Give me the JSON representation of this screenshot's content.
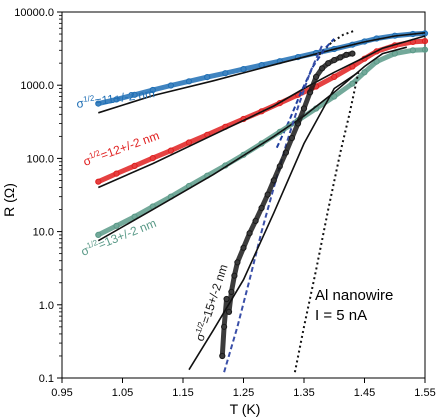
{
  "chart_data": {
    "type": "scatter",
    "title": "",
    "xlabel": "T (K)",
    "ylabel": "R (Ω)",
    "xlim": [
      0.95,
      1.55
    ],
    "ylim": [
      0.1,
      10000
    ],
    "yscale": "log",
    "grid": false,
    "x_ticks": [
      "0.95",
      "1.05",
      "1.15",
      "1.25",
      "1.35",
      "1.45",
      "1.55"
    ],
    "y_ticks": [
      "0.1",
      "1.0",
      "10.0",
      "100.0",
      "1000.0",
      "10000.0"
    ],
    "annotation": {
      "lines": [
        "Al nanowire",
        "I = 5 nA"
      ]
    },
    "series": [
      {
        "label": {
          "base": "σ",
          "sup": "1/2",
          "rest": "=11+/-2 nm"
        },
        "color": "#1f6fb5",
        "data": [
          [
            1.01,
            560
          ],
          [
            1.04,
            640
          ],
          [
            1.07,
            740
          ],
          [
            1.1,
            860
          ],
          [
            1.13,
            990
          ],
          [
            1.16,
            1130
          ],
          [
            1.19,
            1290
          ],
          [
            1.22,
            1460
          ],
          [
            1.25,
            1660
          ],
          [
            1.28,
            1880
          ],
          [
            1.31,
            2130
          ],
          [
            1.34,
            2420
          ],
          [
            1.37,
            2750
          ],
          [
            1.4,
            3120
          ],
          [
            1.43,
            3570
          ],
          [
            1.45,
            3950
          ],
          [
            1.47,
            4350
          ],
          [
            1.5,
            4750
          ],
          [
            1.53,
            5000
          ],
          [
            1.55,
            5100
          ]
        ],
        "fits": [
          {
            "style": "solid",
            "color": "#111111",
            "data": [
              [
                1.01,
                420
              ],
              [
                1.1,
                720
              ],
              [
                1.2,
                1150
              ],
              [
                1.3,
                1900
              ],
              [
                1.4,
                3100
              ],
              [
                1.45,
                3900
              ],
              [
                1.5,
                4700
              ],
              [
                1.55,
                5200
              ]
            ]
          },
          {
            "style": "dotted",
            "color": "#111111",
            "data": [
              [
                1.375,
                2600
              ],
              [
                1.395,
                3800
              ],
              [
                1.415,
                4900
              ],
              [
                1.435,
                5600
              ]
            ]
          }
        ]
      },
      {
        "label": {
          "base": "σ",
          "sup": "1/2",
          "rest": "=12+/-2 nm"
        },
        "color": "#e02020",
        "data": [
          [
            1.01,
            48
          ],
          [
            1.04,
            62
          ],
          [
            1.07,
            79
          ],
          [
            1.1,
            101
          ],
          [
            1.13,
            128
          ],
          [
            1.16,
            165
          ],
          [
            1.19,
            210
          ],
          [
            1.22,
            270
          ],
          [
            1.25,
            345
          ],
          [
            1.28,
            440
          ],
          [
            1.31,
            570
          ],
          [
            1.34,
            740
          ],
          [
            1.37,
            960
          ],
          [
            1.4,
            1300
          ],
          [
            1.43,
            1800
          ],
          [
            1.45,
            2300
          ],
          [
            1.47,
            2900
          ],
          [
            1.5,
            3500
          ],
          [
            1.53,
            3900
          ],
          [
            1.55,
            4000
          ]
        ],
        "fits": [
          {
            "style": "solid",
            "color": "#111111",
            "data": [
              [
                1.01,
                40
              ],
              [
                1.1,
                85
              ],
              [
                1.2,
                210
              ],
              [
                1.3,
                520
              ],
              [
                1.35,
                900
              ],
              [
                1.4,
                1500
              ],
              [
                1.45,
                2400
              ],
              [
                1.48,
                3200
              ],
              [
                1.55,
                4700
              ]
            ]
          },
          {
            "style": "dashed",
            "color": "#1f3fa0",
            "data": [
              [
                1.305,
                140
              ],
              [
                1.325,
                320
              ],
              [
                1.345,
                800
              ],
              [
                1.365,
                1800
              ],
              [
                1.385,
                3200
              ],
              [
                1.4,
                4300
              ]
            ]
          }
        ]
      },
      {
        "label": {
          "base": "σ",
          "sup": "1/2",
          "rest": "=13+/-2 nm"
        },
        "color": "#5a9a88",
        "data": [
          [
            1.01,
            9
          ],
          [
            1.04,
            12
          ],
          [
            1.07,
            16
          ],
          [
            1.1,
            22
          ],
          [
            1.13,
            30
          ],
          [
            1.16,
            42
          ],
          [
            1.19,
            58
          ],
          [
            1.22,
            80
          ],
          [
            1.25,
            112
          ],
          [
            1.28,
            160
          ],
          [
            1.31,
            230
          ],
          [
            1.34,
            330
          ],
          [
            1.37,
            480
          ],
          [
            1.4,
            700
          ],
          [
            1.43,
            1050
          ],
          [
            1.45,
            1500
          ],
          [
            1.47,
            2100
          ],
          [
            1.5,
            2700
          ],
          [
            1.53,
            3000
          ],
          [
            1.55,
            3050
          ]
        ],
        "fits": [
          {
            "style": "solid",
            "color": "#111111",
            "data": [
              [
                1.01,
                7.5
              ],
              [
                1.1,
                20
              ],
              [
                1.2,
                60
              ],
              [
                1.3,
                200
              ],
              [
                1.35,
                380
              ],
              [
                1.4,
                800
              ],
              [
                1.45,
                1800
              ],
              [
                1.48,
                2700
              ],
              [
                1.52,
                3300
              ]
            ]
          },
          {
            "style": "dashed",
            "color": "#3a4fa8",
            "data": [
              [
                1.218,
                0.12
              ],
              [
                1.24,
                0.5
              ],
              [
                1.26,
                2.2
              ],
              [
                1.28,
                10
              ],
              [
                1.3,
                40
              ],
              [
                1.32,
                150
              ],
              [
                1.34,
                500
              ],
              [
                1.36,
                1500
              ],
              [
                1.38,
                3500
              ]
            ]
          }
        ]
      },
      {
        "label": {
          "base": "σ",
          "sup": "1/2",
          "rest": "=15+/-2 nm"
        },
        "color": "#1a1a1a",
        "data": [
          [
            1.215,
            0.2
          ],
          [
            1.218,
            0.5
          ],
          [
            1.222,
            1.2
          ],
          [
            1.226,
            0.8
          ],
          [
            1.23,
            1.5
          ],
          [
            1.235,
            2.5
          ],
          [
            1.24,
            3.8
          ],
          [
            1.25,
            6
          ],
          [
            1.26,
            9.5
          ],
          [
            1.27,
            14
          ],
          [
            1.28,
            21
          ],
          [
            1.29,
            32
          ],
          [
            1.3,
            50
          ],
          [
            1.31,
            78
          ],
          [
            1.32,
            120
          ],
          [
            1.33,
            190
          ],
          [
            1.34,
            300
          ],
          [
            1.35,
            480
          ],
          [
            1.36,
            800
          ],
          [
            1.37,
            1300
          ],
          [
            1.38,
            1700
          ],
          [
            1.39,
            2000
          ],
          [
            1.4,
            2200
          ],
          [
            1.41,
            2400
          ],
          [
            1.42,
            2600
          ],
          [
            1.43,
            2700
          ]
        ],
        "fits": [
          {
            "style": "solid",
            "color": "#111111",
            "data": [
              [
                1.16,
                0.13
              ],
              [
                1.2,
                0.45
              ],
              [
                1.25,
                2.2
              ],
              [
                1.3,
                18
              ],
              [
                1.35,
                160
              ],
              [
                1.4,
                900
              ],
              [
                1.44,
                1500
              ]
            ]
          },
          {
            "style": "dotted",
            "color": "#111111",
            "data": [
              [
                1.335,
                0.12
              ],
              [
                1.35,
                0.5
              ],
              [
                1.37,
                3
              ],
              [
                1.39,
                20
              ],
              [
                1.41,
                120
              ],
              [
                1.425,
                400
              ],
              [
                1.44,
                1500
              ]
            ]
          }
        ]
      }
    ]
  }
}
